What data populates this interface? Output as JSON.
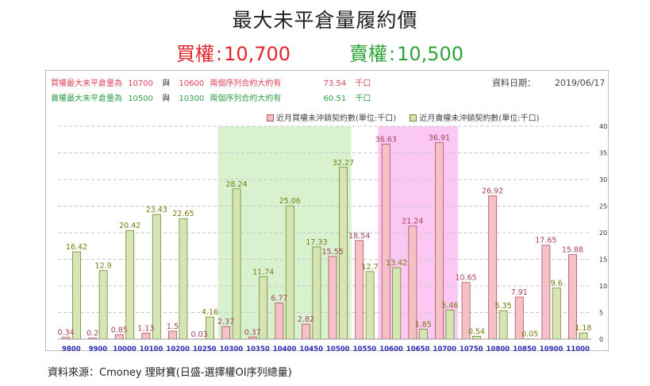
{
  "title": "最大未平倉量履約價",
  "call_max": {
    "label": "買權",
    "sep": ":",
    "value": "10,700"
  },
  "put_max": {
    "label": "賣權",
    "sep": ":",
    "value": "10,500"
  },
  "info_rows": [
    {
      "prefix": "買權最大未平倉量為",
      "strike1": "10700",
      "conj": "與",
      "strike2": "10600",
      "suffix": "兩個序列合約大約有",
      "amount": "73.54",
      "unit": "千口"
    },
    {
      "prefix": "賣權最大未平倉量為",
      "strike1": "10500",
      "conj": "與",
      "strike2": "10300",
      "suffix": "兩個序列合約大約有",
      "amount": "60.51",
      "unit": "千口"
    }
  ],
  "date": {
    "label": "資料日期：",
    "value": "2019/06/17"
  },
  "source": "資料來源：Cmoney 理財寶(日盛-選擇權OI序列總量)",
  "colors": {
    "call_fill": "#f3c1c6",
    "call_stroke": "#b4505f",
    "call_label": "#a5405a",
    "put_fill": "#d6e5b3",
    "put_stroke": "#6c8a2c",
    "put_label": "#7a7a10",
    "band_green": "#d8f2cf",
    "band_magenta": "#fbc8f3",
    "axis_label": "#2a2ab0"
  },
  "chart_data": {
    "type": "bar",
    "categories": [
      "9800",
      "9900",
      "10000",
      "10100",
      "10200",
      "10250",
      "10300",
      "10350",
      "10400",
      "10450",
      "10500",
      "10550",
      "10600",
      "10650",
      "10700",
      "10750",
      "10800",
      "10850",
      "10900",
      "11000"
    ],
    "series": [
      {
        "name": "近月買權未沖銷契約數(單位:千口)",
        "values": [
          0.34,
          0.2,
          0.85,
          1.13,
          1.5,
          0.03,
          2.37,
          0.37,
          6.77,
          2.82,
          15.55,
          18.54,
          36.63,
          21.24,
          36.91,
          10.65,
          26.92,
          7.91,
          17.65,
          15.88
        ]
      },
      {
        "name": "近月賣權未沖銷契約數(單位:千口)",
        "values": [
          16.42,
          12.9,
          20.42,
          23.43,
          22.65,
          4.16,
          28.24,
          11.74,
          25.06,
          17.33,
          32.27,
          12.7,
          13.42,
          1.85,
          5.46,
          0.54,
          5.35,
          0.05,
          9.6,
          1.18
        ]
      }
    ],
    "ylim": [
      0,
      40
    ],
    "yticks": [
      0,
      5,
      10,
      15,
      20,
      25,
      30,
      35,
      40
    ],
    "y_axis_side": "right",
    "grid": true,
    "legend_position": "top",
    "highlight_ranges": [
      {
        "from": "10300",
        "to": "10500",
        "color": "green"
      },
      {
        "from": "10600",
        "to": "10700",
        "color": "magenta"
      }
    ]
  }
}
